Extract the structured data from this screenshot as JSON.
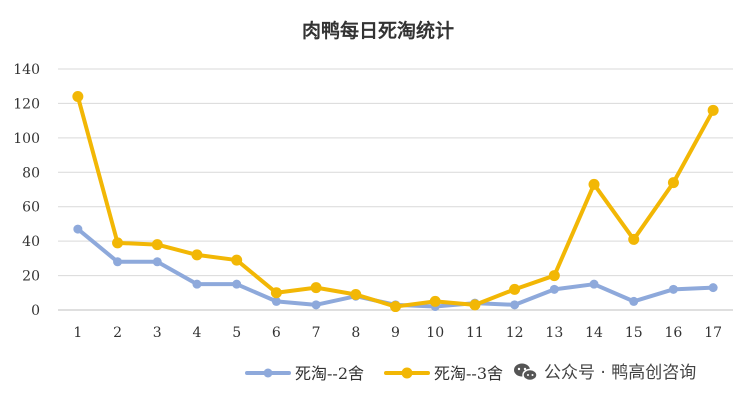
{
  "chart_data": {
    "type": "line",
    "title": "肉鸭每日死淘统计",
    "xlabel": "",
    "ylabel": "",
    "categories": [
      "1",
      "2",
      "3",
      "4",
      "5",
      "6",
      "7",
      "8",
      "9",
      "10",
      "11",
      "12",
      "13",
      "14",
      "15",
      "16",
      "17"
    ],
    "ylim": [
      0,
      140
    ],
    "yticks": [
      0,
      20,
      40,
      60,
      80,
      100,
      120,
      140
    ],
    "grid": true,
    "legend_position": "bottom",
    "series": [
      {
        "name": "死淘--2舍",
        "color": "#8EA9DB",
        "values": [
          47,
          28,
          28,
          15,
          15,
          5,
          3,
          8,
          3,
          2,
          4,
          3,
          12,
          15,
          5,
          12,
          13
        ]
      },
      {
        "name": "死淘--3舍",
        "color": "#F2B705",
        "values": [
          124,
          39,
          38,
          32,
          29,
          10,
          13,
          9,
          2,
          5,
          3,
          12,
          20,
          73,
          41,
          74,
          116
        ]
      }
    ]
  },
  "watermark": {
    "text": "公众号 · 鸭高创咨询",
    "icon": "wechat-icon"
  }
}
